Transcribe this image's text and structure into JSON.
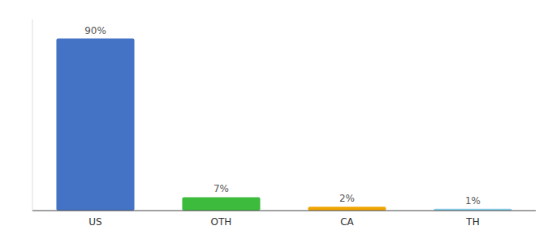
{
  "chart_data": {
    "type": "bar",
    "categories": [
      "US",
      "OTH",
      "CA",
      "TH"
    ],
    "values": [
      90,
      7,
      2,
      1
    ],
    "value_labels": [
      "90%",
      "7%",
      "2%",
      "1%"
    ],
    "colors": [
      "#4472c4",
      "#3dbb3d",
      "#f0a500",
      "#87ceeb"
    ],
    "ylim": [
      0,
      100
    ],
    "data_labels": true,
    "tick_labels": "x",
    "grid": false
  }
}
